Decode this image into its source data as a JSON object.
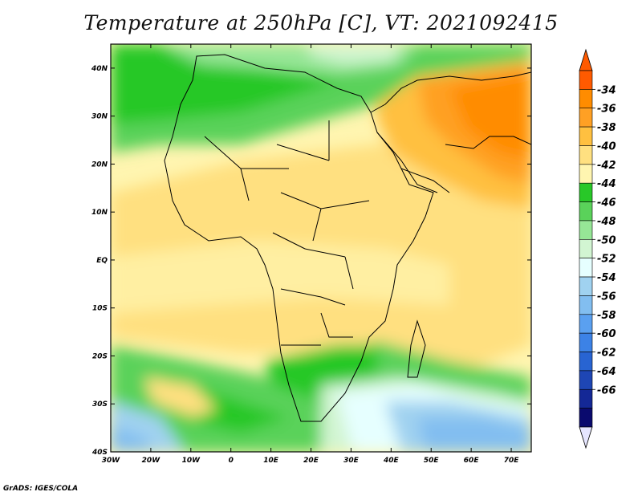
{
  "title": "Temperature at 250hPa [C], VT: 2021092415",
  "credit": "GrADS: IGES/COLA",
  "map": {
    "lon_labels": [
      "30W",
      "20W",
      "10W",
      "0",
      "10E",
      "20E",
      "30E",
      "40E",
      "50E",
      "60E",
      "70E"
    ],
    "lat_labels": [
      "40N",
      "30N",
      "20N",
      "10N",
      "EQ",
      "10S",
      "20S",
      "30S",
      "40S"
    ]
  },
  "legend": {
    "colors": [
      "#ff5a00",
      "#ff8c00",
      "#ffa024",
      "#ffc040",
      "#ffe080",
      "#fff5b0",
      "#28c828",
      "#5ad25a",
      "#96e696",
      "#d2f5d2",
      "#e6ffff",
      "#a0d2f0",
      "#82bef0",
      "#5aa0f0",
      "#3c82e6",
      "#2864d2",
      "#1e46b4",
      "#142896",
      "#0a0a6e"
    ],
    "labels": [
      "-34",
      "-36",
      "-38",
      "-40",
      "-42",
      "-44",
      "-46",
      "-48",
      "-50",
      "-52",
      "-54",
      "-56",
      "-58",
      "-60",
      "-62",
      "-64",
      "-66"
    ],
    "top_arrow_color": "#ff5a00",
    "bottom_arrow_color": "#e6e6ff"
  }
}
